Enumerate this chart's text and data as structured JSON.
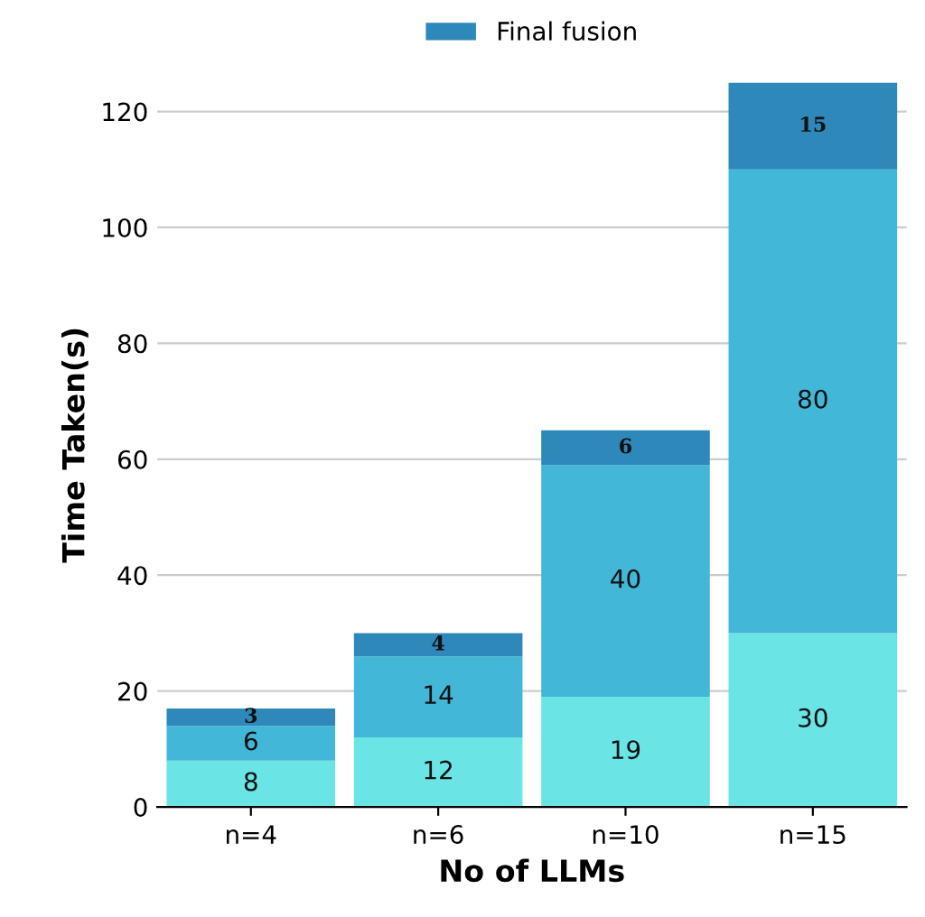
{
  "chart_data": {
    "type": "bar",
    "stacked": true,
    "xlabel": "No of LLMs",
    "ylabel": "Time Taken(s)",
    "categories": [
      "n=4",
      "n=6",
      "n=10",
      "n=15"
    ],
    "series": [
      {
        "color": "#6be4e6",
        "values": [
          8,
          12,
          19,
          30
        ],
        "value_labels": [
          "8",
          "12",
          "19",
          "30"
        ]
      },
      {
        "color": "#43b7d7",
        "values": [
          6,
          14,
          40,
          80
        ],
        "value_labels": [
          "6",
          "14",
          "40",
          "80"
        ]
      },
      {
        "name": "Final fusion",
        "color": "#2e88ba",
        "values": [
          3,
          4,
          6,
          15
        ],
        "value_labels": [
          "3",
          "4",
          "6",
          "15"
        ]
      }
    ],
    "ylim": [
      0,
      125
    ],
    "yticks": [
      0,
      20,
      40,
      60,
      80,
      100,
      120
    ],
    "grid": "y",
    "legend": "top"
  }
}
